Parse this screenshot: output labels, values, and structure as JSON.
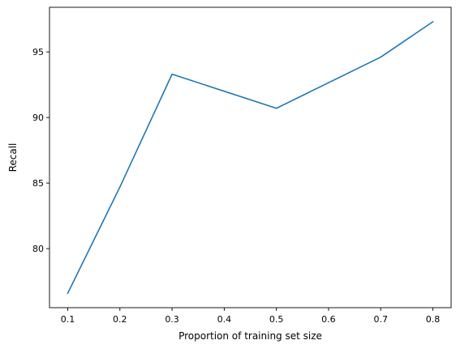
{
  "chart_data": {
    "type": "line",
    "title": "",
    "xlabel": "Proportion of training set size",
    "ylabel": "Recall",
    "xlim": [
      0.065,
      0.835
    ],
    "ylim": [
      75.5,
      98.4
    ],
    "grid": false,
    "line_color": "#1f77b4",
    "x_ticks": [
      "0.1",
      "0.2",
      "0.3",
      "0.4",
      "0.5",
      "0.6",
      "0.7",
      "0.8"
    ],
    "y_ticks": [
      "80",
      "85",
      "90",
      "95"
    ],
    "series": [
      {
        "x": [
          0.1,
          0.2,
          0.3,
          0.5,
          0.7,
          0.8
        ],
        "y": [
          76.6,
          84.7,
          93.3,
          90.7,
          94.6,
          97.3
        ]
      }
    ]
  }
}
